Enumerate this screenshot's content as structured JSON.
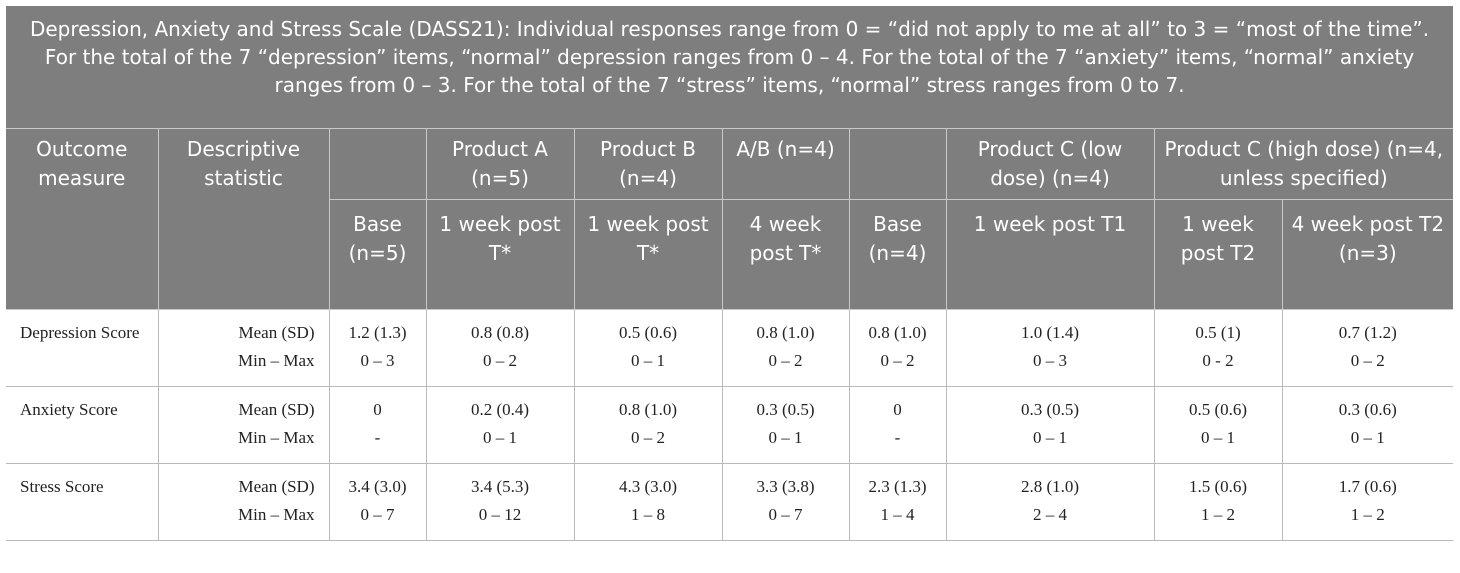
{
  "caption": "Depression, Anxiety and Stress Scale (DASS21): Individual responses range from 0 = “did not apply to me at all” to 3 = “most of the time”. For the total of the 7 “depression” items, “normal” depression ranges from 0 – 4. For the total of the 7 “anxiety” items, “normal” anxiety ranges from 0 – 3. For the total of the 7 “stress” items, “normal” stress ranges from 0 to 7.",
  "header": {
    "outcome_measure": "Outcome measure",
    "descriptive_statistic": "Descriptive statistic",
    "groups": [
      "Product A (n=5)",
      "Product B (n=4)",
      "A/B (n=4)",
      "Product C (low dose) (n=4)",
      "Product C (high dose) (n=4, unless specified)"
    ],
    "timepoints": [
      "Base (n=5)",
      "1 week post T*",
      "1 week post T*",
      "4 week post T*",
      "Base (n=4)",
      "1 week post T1",
      "1 week post T2",
      "4 week post T2 (n=3)"
    ]
  },
  "rows": [
    {
      "measure": "Depression Score",
      "stats": [
        "Mean (SD)",
        "Min – Max"
      ],
      "cells": [
        [
          "1.2 (1.3)",
          "0 – 3"
        ],
        [
          "0.8 (0.8)",
          "0 – 2"
        ],
        [
          "0.5 (0.6)",
          "0 – 1"
        ],
        [
          "0.8 (1.0)",
          "0 – 2"
        ],
        [
          "0.8 (1.0)",
          "0 – 2"
        ],
        [
          "1.0 (1.4)",
          "0 – 3"
        ],
        [
          "0.5 (1)",
          "0 - 2"
        ],
        [
          "0.7 (1.2)",
          "0 – 2"
        ]
      ]
    },
    {
      "measure": "Anxiety Score",
      "stats": [
        "Mean (SD)",
        "Min – Max"
      ],
      "cells": [
        [
          "0",
          "-"
        ],
        [
          "0.2 (0.4)",
          "0 – 1"
        ],
        [
          "0.8 (1.0)",
          "0 – 2"
        ],
        [
          "0.3 (0.5)",
          "0 – 1"
        ],
        [
          "0",
          "-"
        ],
        [
          "0.3 (0.5)",
          "0 – 1"
        ],
        [
          "0.5 (0.6)",
          "0 – 1"
        ],
        [
          "0.3 (0.6)",
          "0 – 1"
        ]
      ]
    },
    {
      "measure": "Stress Score",
      "stats": [
        "Mean (SD)",
        "Min – Max"
      ],
      "cells": [
        [
          "3.4 (3.0)",
          "0 – 7"
        ],
        [
          "3.4 (5.3)",
          "0 – 12"
        ],
        [
          "4.3 (3.0)",
          "1 – 8"
        ],
        [
          "3.3 (3.8)",
          "0 – 7"
        ],
        [
          "2.3 (1.3)",
          "1 – 4"
        ],
        [
          "2.8 (1.0)",
          "2 – 4"
        ],
        [
          "1.5 (0.6)",
          "1 – 2"
        ],
        [
          "1.7 (0.6)",
          "1 – 2"
        ]
      ]
    }
  ],
  "colors": {
    "header_bg": "#7e7e7e",
    "header_text": "#ffffff",
    "border": "#b9b9b9"
  }
}
